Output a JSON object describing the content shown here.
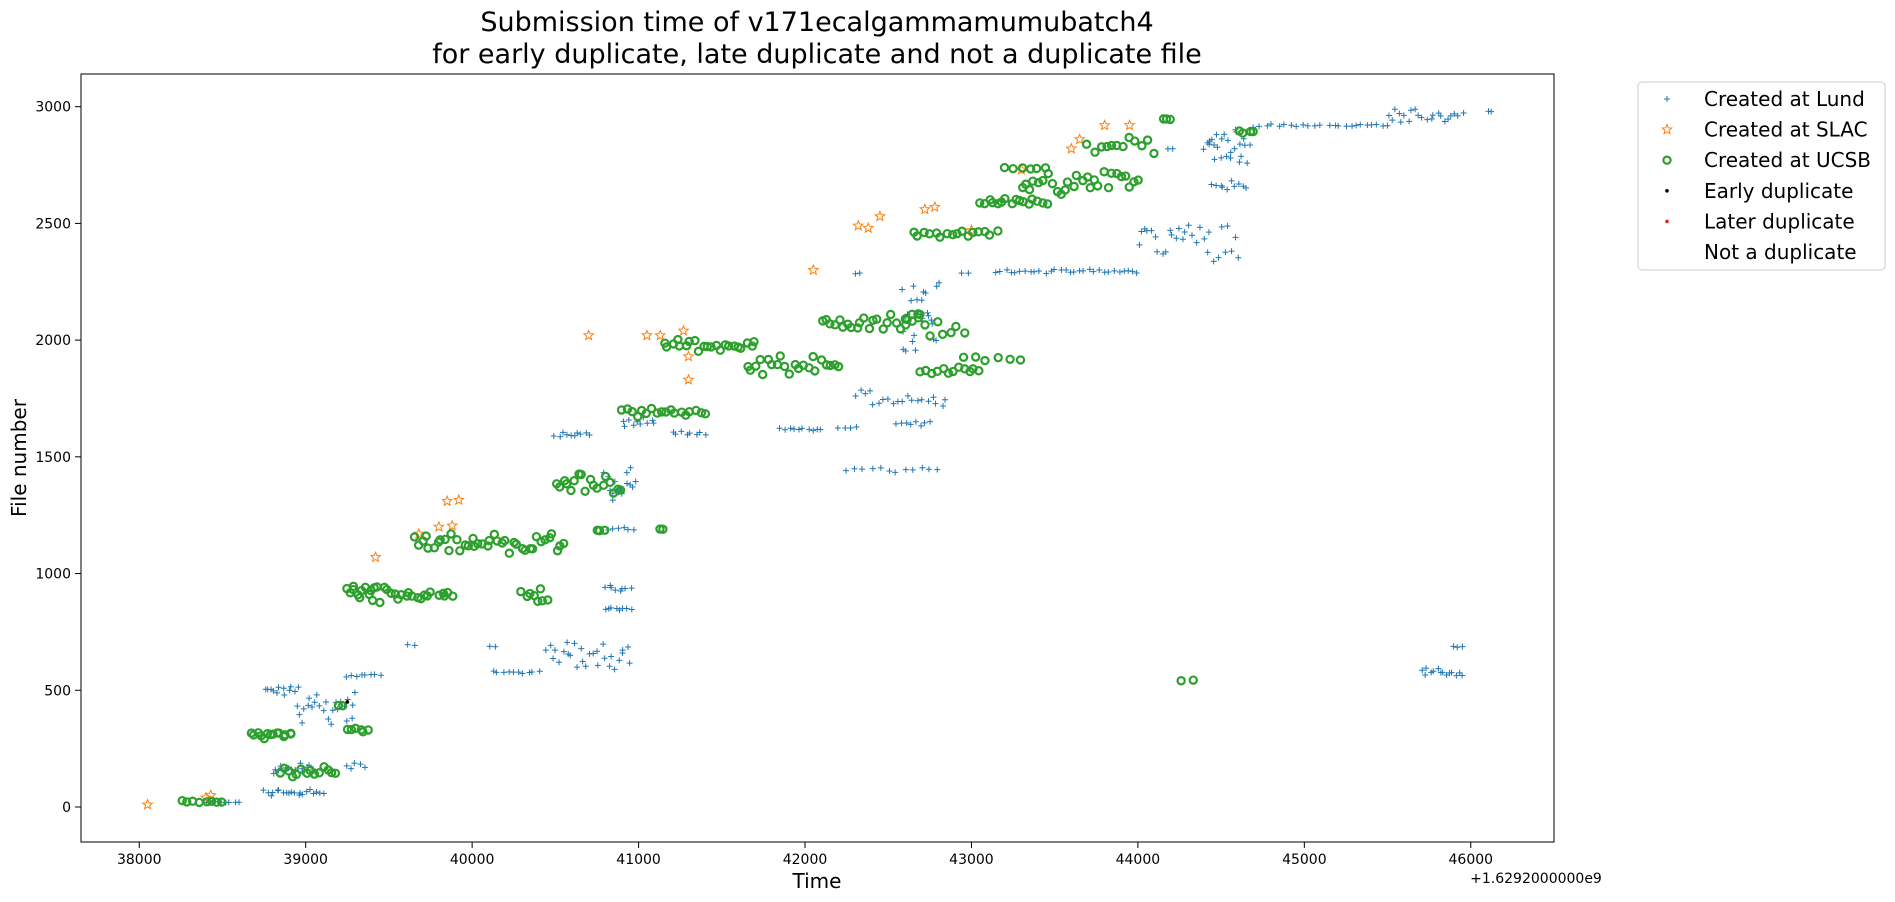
{
  "chart_data": {
    "type": "scatter",
    "title": "Submission time of v171ecalgammamumubatch4\nfor early duplicate, late duplicate and not a duplicate file",
    "xlabel": "Time",
    "ylabel": "File number",
    "x_offset_label": "+1.6292000000e9",
    "x_offset": 1629200000,
    "xlim": [
      37650,
      46500
    ],
    "ylim": [
      -150,
      3140
    ],
    "xticks": [
      38000,
      39000,
      40000,
      41000,
      42000,
      43000,
      44000,
      45000,
      46000
    ],
    "yticks": [
      0,
      500,
      1000,
      1500,
      2000,
      2500,
      3000
    ],
    "grid": false,
    "legend_position": "outside-right-top",
    "colors": {
      "lund": "#1f77b4",
      "slac": "#ff7f0e",
      "ucsb": "#2ca02c",
      "early": "#000000",
      "later": "#d62728"
    },
    "legend": [
      {
        "label": "Created at Lund",
        "marker": "plus",
        "color": "#1f77b4"
      },
      {
        "label": "Created at SLAC",
        "marker": "star",
        "color": "#ff7f0e"
      },
      {
        "label": "Created at UCSB",
        "marker": "circle",
        "color": "#2ca02c"
      },
      {
        "label": "Early duplicate",
        "marker": "dot",
        "color": "#000000"
      },
      {
        "label": "Later duplicate",
        "marker": "dot",
        "color": "#d62728"
      },
      {
        "label": "Not a duplicate",
        "marker": "none",
        "color": "#ffffff"
      }
    ],
    "series": [
      {
        "name": "Created at Lund",
        "marker": "plus",
        "color": "#1f77b4",
        "clusters": [
          {
            "x": [
              38400,
              38600
            ],
            "y": [
              15,
              25
            ],
            "n": 8
          },
          {
            "x": [
              38750,
              39100
            ],
            "y": [
              40,
              90
            ],
            "n": 20
          },
          {
            "x": [
              38800,
              39050
            ],
            "y": [
              120,
              195
            ],
            "n": 18
          },
          {
            "x": [
              39250,
              39350
            ],
            "y": [
              150,
              200
            ],
            "n": 5
          },
          {
            "x": [
              38950,
              39300
            ],
            "y": [
              340,
              520
            ],
            "n": 24
          },
          {
            "x": [
              38750,
              38950
            ],
            "y": [
              470,
              525
            ],
            "n": 12
          },
          {
            "x": [
              39250,
              39450
            ],
            "y": [
              555,
              575
            ],
            "n": 8
          },
          {
            "x": [
              39620,
              39650
            ],
            "y": [
              690,
              700
            ],
            "n": 2
          },
          {
            "x": [
              40120,
              40400
            ],
            "y": [
              570,
              585
            ],
            "n": 10
          },
          {
            "x": [
              40100,
              40130
            ],
            "y": [
              680,
              690
            ],
            "n": 2
          },
          {
            "x": [
              40450,
              40950
            ],
            "y": [
              580,
              740
            ],
            "n": 28
          },
          {
            "x": [
              40800,
              40950
            ],
            "y": [
              835,
              860
            ],
            "n": 8
          },
          {
            "x": [
              40800,
              40950
            ],
            "y": [
              920,
              950
            ],
            "n": 8
          },
          {
            "x": [
              40820,
              40970
            ],
            "y": [
              1180,
              1200
            ],
            "n": 6
          },
          {
            "x": [
              40800,
              40980
            ],
            "y": [
              1300,
              1480
            ],
            "n": 16
          },
          {
            "x": [
              40500,
              40700
            ],
            "y": [
              1580,
              1610
            ],
            "n": 10
          },
          {
            "x": [
              40900,
              41100
            ],
            "y": [
              1620,
              1680
            ],
            "n": 10
          },
          {
            "x": [
              41200,
              41400
            ],
            "y": [
              1580,
              1610
            ],
            "n": 8
          },
          {
            "x": [
              41850,
              42100
            ],
            "y": [
              1610,
              1625
            ],
            "n": 10
          },
          {
            "x": [
              42200,
              42300
            ],
            "y": [
              1620,
              1630
            ],
            "n": 4
          },
          {
            "x": [
              42250,
              42800
            ],
            "y": [
              1430,
              1460
            ],
            "n": 12
          },
          {
            "x": [
              42300,
              42850
            ],
            "y": [
              1700,
              1800
            ],
            "n": 20
          },
          {
            "x": [
              42550,
              42750
            ],
            "y": [
              1630,
              1660
            ],
            "n": 8
          },
          {
            "x": [
              42580,
              42800
            ],
            "y": [
              1940,
              2280
            ],
            "n": 26
          },
          {
            "x": [
              42300,
              42330
            ],
            "y": [
              2280,
              2290
            ],
            "n": 2
          },
          {
            "x": [
              42950,
              42980
            ],
            "y": [
              2280,
              2290
            ],
            "n": 2
          },
          {
            "x": [
              43150,
              44000
            ],
            "y": [
              2285,
              2305
            ],
            "n": 30
          },
          {
            "x": [
              44000,
              44600
            ],
            "y": [
              2310,
              2550
            ],
            "n": 30
          },
          {
            "x": [
              44450,
              44650
            ],
            "y": [
              2640,
              2690
            ],
            "n": 10
          },
          {
            "x": [
              44400,
              44650
            ],
            "y": [
              2720,
              2920
            ],
            "n": 24
          },
          {
            "x": [
              44180,
              44200
            ],
            "y": [
              2810,
              2825
            ],
            "n": 2
          },
          {
            "x": [
              44700,
              45100
            ],
            "y": [
              2910,
              2930
            ],
            "n": 12
          },
          {
            "x": [
              45150,
              45500
            ],
            "y": [
              2910,
              2930
            ],
            "n": 12
          },
          {
            "x": [
              45500,
              45950
            ],
            "y": [
              2930,
              3000
            ],
            "n": 22
          },
          {
            "x": [
              46100,
              46130
            ],
            "y": [
              2975,
              2985
            ],
            "n": 2
          },
          {
            "x": [
              45700,
              45950
            ],
            "y": [
              550,
              600
            ],
            "n": 14
          },
          {
            "x": [
              45900,
              45950
            ],
            "y": [
              680,
              690
            ],
            "n": 3
          },
          {
            "x": [
              44650,
              44680
            ],
            "y": [
              2830,
              2840
            ],
            "n": 2
          }
        ]
      },
      {
        "name": "Created at SLAC",
        "marker": "star",
        "color": "#ff7f0e",
        "points": [
          [
            38050,
            10
          ],
          [
            38400,
            40
          ],
          [
            38430,
            50
          ],
          [
            39420,
            1070
          ],
          [
            39680,
            1170
          ],
          [
            39800,
            1200
          ],
          [
            39880,
            1205
          ],
          [
            39850,
            1310
          ],
          [
            39920,
            1315
          ],
          [
            40700,
            2020
          ],
          [
            41050,
            2020
          ],
          [
            41130,
            2020
          ],
          [
            41270,
            2040
          ],
          [
            41300,
            1930
          ],
          [
            41300,
            1830
          ],
          [
            42050,
            2300
          ],
          [
            42320,
            2490
          ],
          [
            42380,
            2480
          ],
          [
            42450,
            2530
          ],
          [
            42720,
            2560
          ],
          [
            42780,
            2570
          ],
          [
            43000,
            2470
          ],
          [
            43600,
            2820
          ],
          [
            43650,
            2860
          ],
          [
            43800,
            2920
          ],
          [
            43950,
            2920
          ],
          [
            43300,
            2730
          ]
        ]
      },
      {
        "name": "Created at UCSB",
        "marker": "circle",
        "color": "#2ca02c",
        "clusters": [
          {
            "x": [
              38260,
              38500
            ],
            "y": [
              15,
              30
            ],
            "n": 8
          },
          {
            "x": [
              38670,
              38920
            ],
            "y": [
              290,
              325
            ],
            "n": 14
          },
          {
            "x": [
              38850,
              39180
            ],
            "y": [
              120,
              175
            ],
            "n": 14
          },
          {
            "x": [
              39250,
              39380
            ],
            "y": [
              320,
              340
            ],
            "n": 6
          },
          {
            "x": [
              39200,
              39220
            ],
            "y": [
              430,
              440
            ],
            "n": 2
          },
          {
            "x": [
              39250,
              39480
            ],
            "y": [
              870,
              980
            ],
            "n": 16
          },
          {
            "x": [
              39520,
              39750
            ],
            "y": [
              880,
              940
            ],
            "n": 12
          },
          {
            "x": [
              39800,
              39880
            ],
            "y": [
              900,
              930
            ],
            "n": 5
          },
          {
            "x": [
              39650,
              40550
            ],
            "y": [
              1080,
              1180
            ],
            "n": 40
          },
          {
            "x": [
              40300,
              40450
            ],
            "y": [
              860,
              970
            ],
            "n": 8
          },
          {
            "x": [
              40500,
              40900
            ],
            "y": [
              1330,
              1440
            ],
            "n": 18
          },
          {
            "x": [
              40750,
              40800
            ],
            "y": [
              1180,
              1190
            ],
            "n": 3
          },
          {
            "x": [
              41120,
              41150
            ],
            "y": [
              1185,
              1195
            ],
            "n": 2
          },
          {
            "x": [
              40900,
              41400
            ],
            "y": [
              1670,
              1710
            ],
            "n": 18
          },
          {
            "x": [
              41150,
              41700
            ],
            "y": [
              1950,
              2010
            ],
            "n": 22
          },
          {
            "x": [
              41650,
              42200
            ],
            "y": [
              1840,
              1940
            ],
            "n": 22
          },
          {
            "x": [
              42100,
              42700
            ],
            "y": [
              2040,
              2120
            ],
            "n": 24
          },
          {
            "x": [
              42600,
              42950
            ],
            "y": [
              1990,
              2140
            ],
            "n": 10
          },
          {
            "x": [
              42700,
              43050
            ],
            "y": [
              1840,
              1890
            ],
            "n": 12
          },
          {
            "x": [
              42950,
              43300
            ],
            "y": [
              1910,
              1930
            ],
            "n": 6
          },
          {
            "x": [
              42650,
              43150
            ],
            "y": [
              2440,
              2470
            ],
            "n": 16
          },
          {
            "x": [
              43050,
              43450
            ],
            "y": [
              2560,
              2620
            ],
            "n": 16
          },
          {
            "x": [
              43300,
              44000
            ],
            "y": [
              2620,
              2740
            ],
            "n": 28
          },
          {
            "x": [
              43700,
              44100
            ],
            "y": [
              2790,
              2870
            ],
            "n": 12
          },
          {
            "x": [
              43200,
              43450
            ],
            "y": [
              2730,
              2740
            ],
            "n": 6
          },
          {
            "x": [
              44150,
              44200
            ],
            "y": [
              2940,
              2950
            ],
            "n": 3
          },
          {
            "x": [
              44600,
              44700
            ],
            "y": [
              2880,
              2910
            ],
            "n": 4
          },
          {
            "x": [
              44250,
              44330
            ],
            "y": [
              530,
              565
            ],
            "n": 2
          }
        ]
      },
      {
        "name": "Early duplicate",
        "marker": "dot",
        "color": "#000000",
        "points": [
          [
            39250,
            450
          ]
        ]
      },
      {
        "name": "Later duplicate",
        "marker": "dot",
        "color": "#d62728",
        "points": []
      },
      {
        "name": "Not a duplicate",
        "marker": "none",
        "color": "#ffffff",
        "points": []
      }
    ]
  }
}
